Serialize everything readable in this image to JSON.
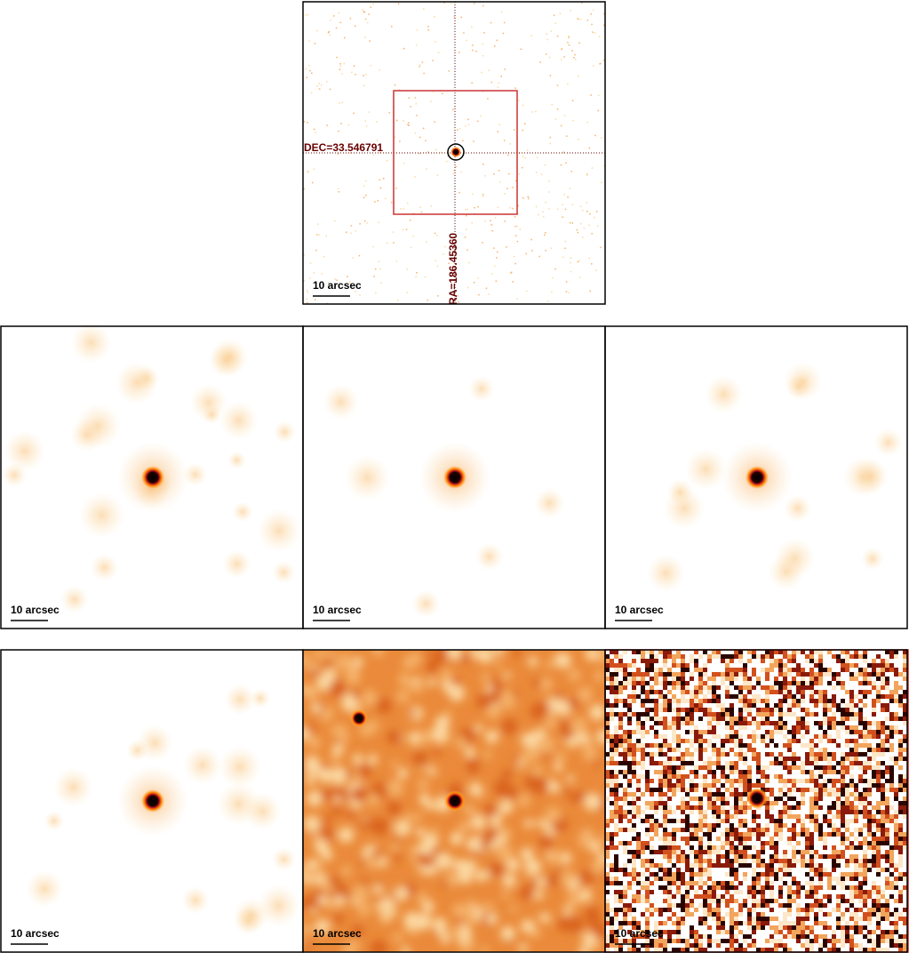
{
  "panels": [
    {
      "scale_bar": "10 arcsec",
      "dec_label": "DEC=33.546791",
      "ra_label": "RA=186.45360"
    },
    {
      "scale_bar": "10 arcsec"
    },
    {
      "scale_bar": "10 arcsec"
    },
    {
      "scale_bar": "10 arcsec"
    },
    {
      "scale_bar": "10 arcsec"
    },
    {
      "scale_bar": "10 arcsec"
    },
    {
      "scale_bar": "10 arcsec"
    }
  ]
}
